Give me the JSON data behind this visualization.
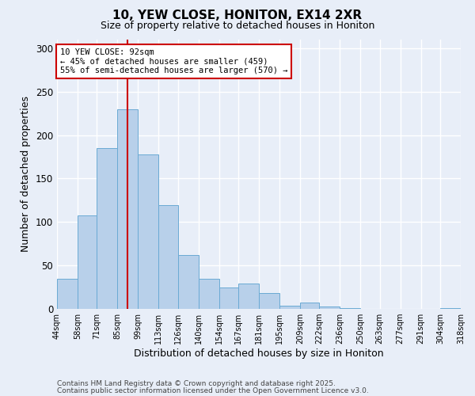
{
  "title": "10, YEW CLOSE, HONITON, EX14 2XR",
  "subtitle": "Size of property relative to detached houses in Honiton",
  "xlabel": "Distribution of detached houses by size in Honiton",
  "ylabel": "Number of detached properties",
  "bar_edges": [
    44,
    58,
    71,
    85,
    99,
    113,
    126,
    140,
    154,
    167,
    181,
    195,
    209,
    222,
    236,
    250,
    263,
    277,
    291,
    304,
    318
  ],
  "bar_heights": [
    35,
    108,
    185,
    230,
    178,
    119,
    62,
    35,
    25,
    29,
    18,
    4,
    7,
    3,
    1,
    0,
    0,
    0,
    0,
    1
  ],
  "bar_color": "#b8d0ea",
  "bar_edge_color": "#6aaad4",
  "vline_x": 92,
  "vline_color": "#cc0000",
  "annotation_title": "10 YEW CLOSE: 92sqm",
  "annotation_line1": "← 45% of detached houses are smaller (459)",
  "annotation_line2": "55% of semi-detached houses are larger (570) →",
  "annotation_box_facecolor": "#ffffff",
  "annotation_box_edgecolor": "#cc0000",
  "xlim_left": 44,
  "xlim_right": 318,
  "ylim_top": 310,
  "footnote1": "Contains HM Land Registry data © Crown copyright and database right 2025.",
  "footnote2": "Contains public sector information licensed under the Open Government Licence v3.0.",
  "background_color": "#e8eef8",
  "grid_color": "#ffffff",
  "tick_labels": [
    "44sqm",
    "58sqm",
    "71sqm",
    "85sqm",
    "99sqm",
    "113sqm",
    "126sqm",
    "140sqm",
    "154sqm",
    "167sqm",
    "181sqm",
    "195sqm",
    "209sqm",
    "222sqm",
    "236sqm",
    "250sqm",
    "263sqm",
    "277sqm",
    "291sqm",
    "304sqm",
    "318sqm"
  ],
  "yticks": [
    0,
    50,
    100,
    150,
    200,
    250,
    300
  ]
}
